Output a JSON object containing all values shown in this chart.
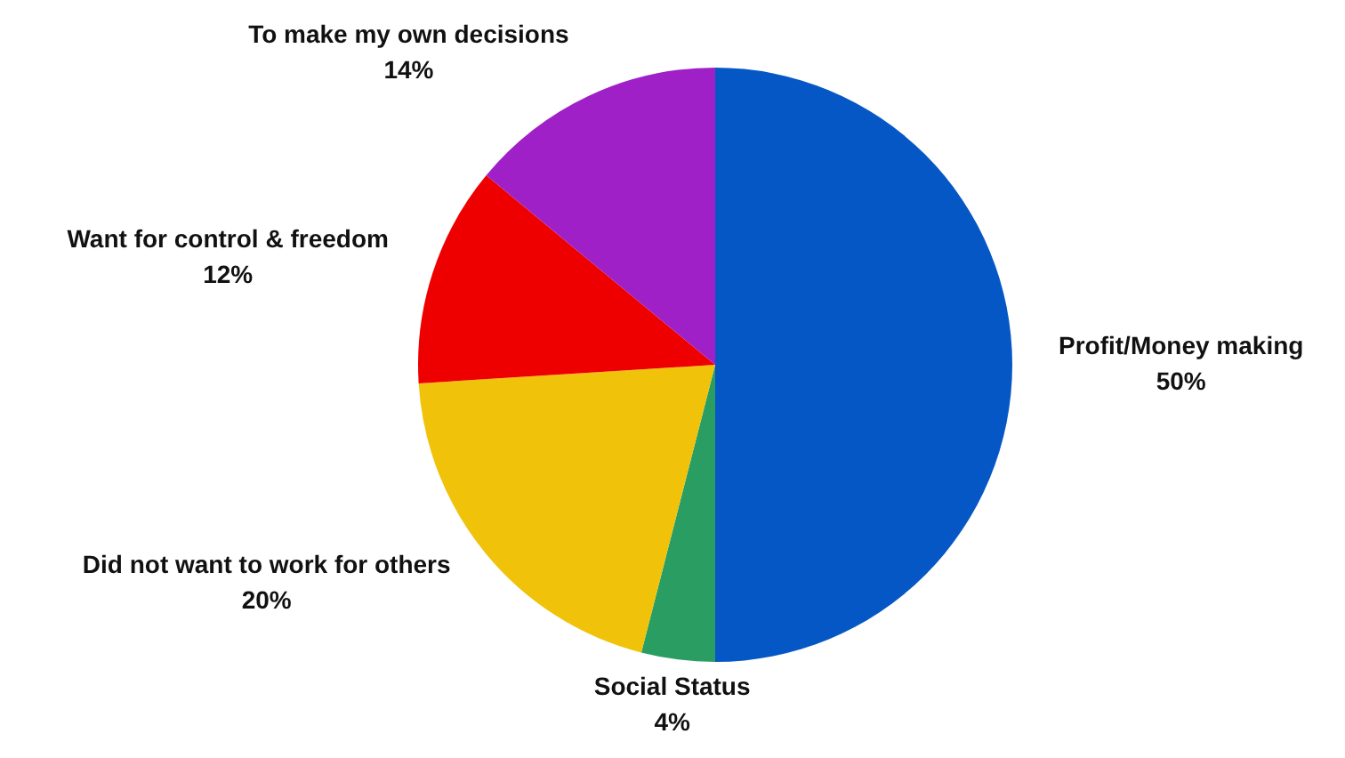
{
  "chart_data": {
    "type": "pie",
    "categories": [
      "Profit/Money making",
      "Social Status",
      "Did not want to work for others",
      "Want for control & freedom",
      "To make my own decisions"
    ],
    "values": [
      50,
      4,
      20,
      12,
      14
    ],
    "value_labels": [
      "50%",
      "4%",
      "20%",
      "12%",
      "14%"
    ],
    "colors": [
      "#0657c6",
      "#2a9d63",
      "#f0c20a",
      "#ee0000",
      "#a020c8"
    ],
    "legend": false
  }
}
